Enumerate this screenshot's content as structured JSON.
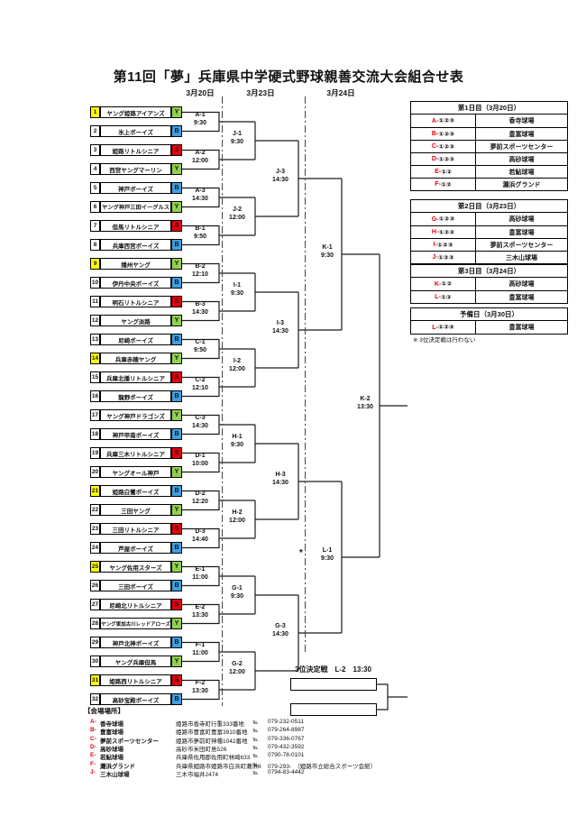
{
  "title": "第11回「夢」兵庫県中学硬式野球親善交流大会組合せ表",
  "column_dates": [
    "3月20日",
    "3月23日",
    "3月24日"
  ],
  "colors": {
    "young": "#92d050",
    "boys": "#3ba2e0",
    "senior": "#e3000f",
    "seed": "#ffff00",
    "accent": "#e3000f"
  },
  "teams": [
    {
      "no": "1",
      "name": "ヤング姫路アイアンズ",
      "league": "Y",
      "color": "young",
      "seed": true
    },
    {
      "no": "2",
      "name": "氷上ボーイズ",
      "league": "B",
      "color": "boys",
      "seed": false
    },
    {
      "no": "3",
      "name": "姫路リトルシニア",
      "league": "S",
      "color": "senior",
      "seed": false
    },
    {
      "no": "4",
      "name": "西宮ヤングマーリン",
      "league": "Y",
      "color": "young",
      "seed": false
    },
    {
      "no": "5",
      "name": "神戸ボーイズ",
      "league": "B",
      "color": "boys",
      "seed": false
    },
    {
      "no": "6",
      "name": "ヤング神戸三田イーグルス",
      "league": "Y",
      "color": "young",
      "seed": false
    },
    {
      "no": "7",
      "name": "但馬リトルシニア",
      "league": "S",
      "color": "senior",
      "seed": false
    },
    {
      "no": "8",
      "name": "兵庫西宮ボーイズ",
      "league": "B",
      "color": "boys",
      "seed": false
    },
    {
      "no": "9",
      "name": "播州ヤング",
      "league": "Y",
      "color": "young",
      "seed": true
    },
    {
      "no": "10",
      "name": "伊丹中央ボーイズ",
      "league": "B",
      "color": "boys",
      "seed": false
    },
    {
      "no": "11",
      "name": "明石リトルシニア",
      "league": "S",
      "color": "senior",
      "seed": false
    },
    {
      "no": "12",
      "name": "ヤング淡路",
      "league": "Y",
      "color": "young",
      "seed": false
    },
    {
      "no": "13",
      "name": "尼崎ボーイズ",
      "league": "B",
      "color": "boys",
      "seed": false
    },
    {
      "no": "14",
      "name": "兵庫赤穂ヤング",
      "league": "Y",
      "color": "young",
      "seed": true
    },
    {
      "no": "15",
      "name": "兵庫北播リトルシニア",
      "league": "S",
      "color": "senior",
      "seed": false
    },
    {
      "no": "16",
      "name": "龍野ボーイズ",
      "league": "B",
      "color": "boys",
      "seed": false
    },
    {
      "no": "17",
      "name": "ヤング神戸ドラゴンズ",
      "league": "Y",
      "color": "young",
      "seed": false
    },
    {
      "no": "18",
      "name": "神戸甲南ボーイズ",
      "league": "B",
      "color": "boys",
      "seed": false
    },
    {
      "no": "19",
      "name": "兵庫三木リトルシニア",
      "league": "S",
      "color": "senior",
      "seed": false
    },
    {
      "no": "20",
      "name": "ヤングオール神戸",
      "league": "Y",
      "color": "young",
      "seed": false
    },
    {
      "no": "21",
      "name": "姫路白鷺ボーイズ",
      "league": "B",
      "color": "boys",
      "seed": true
    },
    {
      "no": "22",
      "name": "三田ヤング",
      "league": "Y",
      "color": "young",
      "seed": false
    },
    {
      "no": "23",
      "name": "三田リトルシニア",
      "league": "S",
      "color": "senior",
      "seed": false
    },
    {
      "no": "24",
      "name": "芦屋ボーイズ",
      "league": "B",
      "color": "boys",
      "seed": false
    },
    {
      "no": "25",
      "name": "ヤング佐用スターズ",
      "league": "Y",
      "color": "young",
      "seed": true
    },
    {
      "no": "26",
      "name": "三田ボーイズ",
      "league": "B",
      "color": "boys",
      "seed": false
    },
    {
      "no": "27",
      "name": "尼崎北リトルシニア",
      "league": "S",
      "color": "senior",
      "seed": false
    },
    {
      "no": "28",
      "name": "ヤング東加古川レッドアローズ",
      "league": "Y",
      "color": "young",
      "seed": false
    },
    {
      "no": "29",
      "name": "神戸北神ボーイズ",
      "league": "B",
      "color": "boys",
      "seed": false
    },
    {
      "no": "30",
      "name": "ヤング兵庫但馬",
      "league": "Y",
      "color": "young",
      "seed": false
    },
    {
      "no": "31",
      "name": "姫路西リトルシニア",
      "league": "S",
      "color": "senior",
      "seed": true
    },
    {
      "no": "32",
      "name": "高砂宝殿ボーイズ",
      "league": "B",
      "color": "boys",
      "seed": false
    }
  ],
  "bracket": {
    "round1": [
      {
        "code": "A-1",
        "time": "9:30"
      },
      {
        "code": "A-2",
        "time": "12:00"
      },
      {
        "code": "A-3",
        "time": "14:30"
      },
      {
        "code": "B-1",
        "time": "9:50"
      },
      {
        "code": "B-2",
        "time": "12:10"
      },
      {
        "code": "B-3",
        "time": "14:30"
      },
      {
        "code": "C-1",
        "time": "9:50"
      },
      {
        "code": "C-2",
        "time": "12:10"
      },
      {
        "code": "C-3",
        "time": "14:30"
      },
      {
        "code": "D-1",
        "time": "10:00"
      },
      {
        "code": "D-2",
        "time": "12:20"
      },
      {
        "code": "D-3",
        "time": "14:40"
      },
      {
        "code": "E-1",
        "time": "11:00"
      },
      {
        "code": "E-2",
        "time": "13:30"
      },
      {
        "code": "F-1",
        "time": "11:00"
      },
      {
        "code": "F-2",
        "time": "13:30"
      }
    ],
    "round2": [
      {
        "code": "J-1",
        "time": "9:30"
      },
      {
        "code": "J-2",
        "time": "12:00"
      },
      {
        "code": "I-1",
        "time": "9:30"
      },
      {
        "code": "I-2",
        "time": "12:00"
      },
      {
        "code": "H-1",
        "time": "9:30"
      },
      {
        "code": "H-2",
        "time": "12:00"
      },
      {
        "code": "G-1",
        "time": "9:30"
      },
      {
        "code": "G-2",
        "time": "12:00"
      }
    ],
    "round3": [
      {
        "code": "J-3",
        "time": "14:30"
      },
      {
        "code": "I-3",
        "time": "14:30"
      },
      {
        "code": "H-3",
        "time": "14:30"
      },
      {
        "code": "G-3",
        "time": "14:30"
      }
    ],
    "semifinals": [
      {
        "code": "K-1",
        "time": "9:30"
      },
      {
        "code": "L-1",
        "time": "9:30"
      }
    ],
    "final": {
      "code": "K-2",
      "time": "13:30"
    },
    "asterisk": "*"
  },
  "third_place": {
    "title": "3位決定戦",
    "code": "L-2",
    "time": "13:30"
  },
  "schedule_tables": [
    {
      "title": "第1日目（3月20日）",
      "rows": [
        {
          "code_letter": "A-",
          "code_rounds": "①②③",
          "venue": "香寺球場"
        },
        {
          "code_letter": "B-",
          "code_rounds": "①②③",
          "venue": "豊富球場"
        },
        {
          "code_letter": "C-",
          "code_rounds": "①②③",
          "venue": "夢前スポーツセンター"
        },
        {
          "code_letter": "D-",
          "code_rounds": "①②③",
          "venue": "高砂球場"
        },
        {
          "code_letter": "E-",
          "code_rounds": "①②",
          "venue": "若鮎球場"
        },
        {
          "code_letter": "F-",
          "code_rounds": "①②",
          "venue": "灘浜グランド"
        }
      ]
    },
    {
      "title": "第2日目（3月23日）",
      "rows": [
        {
          "code_letter": "G-",
          "code_rounds": "①②③",
          "venue": "高砂球場"
        },
        {
          "code_letter": "H-",
          "code_rounds": "①②③",
          "venue": "豊富球場"
        },
        {
          "code_letter": "I-",
          "code_rounds": "①②③",
          "venue": "夢前スポーツセンター"
        },
        {
          "code_letter": "J-",
          "code_rounds": "①②③",
          "venue": "三木山球場"
        }
      ]
    },
    {
      "title": "第3日目（3月24日）",
      "rows": [
        {
          "code_letter": "K-",
          "code_rounds": "①②",
          "venue": "高砂球場"
        },
        {
          "code_letter": "L-",
          "code_rounds": "①②",
          "venue": "豊富球場"
        }
      ]
    },
    {
      "title": "予備日（3月30日）",
      "rows": [
        {
          "code_letter": "L-",
          "code_rounds": "①②③",
          "venue": "豊富球場"
        }
      ],
      "note": "※ 3位決定戦は行わない"
    }
  ],
  "legend": {
    "heading": "【会場場所】",
    "tel_label": "℡",
    "rows": [
      {
        "code": "A-",
        "venue": "香寺球場",
        "address": "姫路市香寺町行重333番地",
        "tel": "079-232-0511"
      },
      {
        "code": "B-",
        "venue": "豊富球場",
        "address": "姫路市豊富町豊富3910番地",
        "tel": "079-264-8987"
      },
      {
        "code": "C-",
        "venue": "夢前スポーツセンター",
        "address": "姫路市夢前町神種1042番地",
        "tel": "079-336-0767"
      },
      {
        "code": "D-",
        "venue": "高砂球場",
        "address": "高砂市米田町島526",
        "tel": "079-432-3592"
      },
      {
        "code": "E-",
        "venue": "若鮎球場",
        "address": "兵庫県佐用郡佐用町林崎633",
        "tel": "0790-78-0101"
      },
      {
        "code": "F-",
        "venue": "灘浜グランド",
        "address": "兵庫県姫路市姫路市白浜町灘浜8",
        "tel": "079-293-　（姫路市立総合スポーツ会館）"
      },
      {
        "code": "J-",
        "venue": "三木山球場",
        "address": "三木市福井2474",
        "tel": "0794-83-4442"
      }
    ]
  }
}
